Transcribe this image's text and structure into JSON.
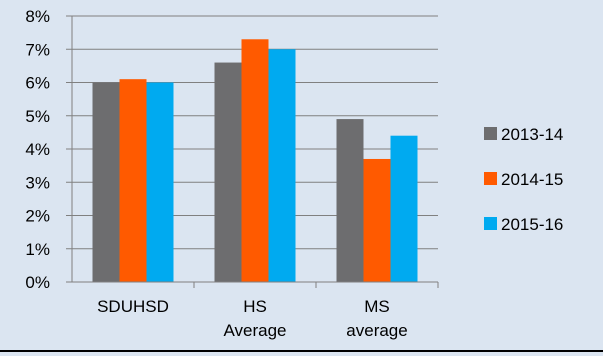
{
  "chart_data": {
    "type": "bar",
    "title": "",
    "xlabel": "",
    "ylabel": "",
    "categories": [
      [
        "SDUHSD"
      ],
      [
        "HS",
        "Average"
      ],
      [
        "MS",
        "average"
      ]
    ],
    "series": [
      {
        "name": "2013-14",
        "color": "#6d6d6f",
        "values": [
          6.0,
          6.6,
          4.9
        ]
      },
      {
        "name": "2014-15",
        "color": "#ff5a00",
        "values": [
          6.1,
          7.3,
          3.7
        ]
      },
      {
        "name": "2015-16",
        "color": "#00aaf0",
        "values": [
          6.0,
          7.0,
          4.4
        ]
      }
    ],
    "ylim": [
      0,
      8
    ],
    "yticks": [
      0,
      1,
      2,
      3,
      4,
      5,
      6,
      7,
      8
    ],
    "ytick_labels": [
      "0%",
      "1%",
      "2%",
      "3%",
      "4%",
      "5%",
      "6%",
      "7%",
      "8%"
    ],
    "grid": true,
    "legend": "right",
    "colors": {
      "background": "#dbe5f1",
      "grid": "#808080"
    }
  }
}
